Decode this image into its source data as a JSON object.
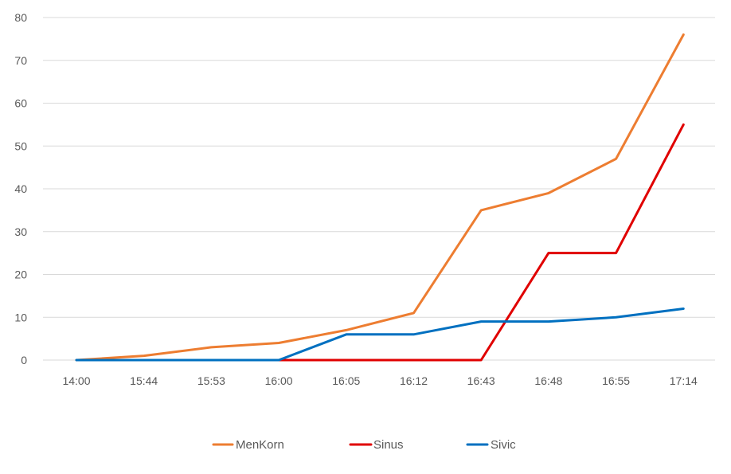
{
  "chart_data": {
    "type": "line",
    "title": "",
    "xlabel": "",
    "ylabel": "",
    "categories": [
      "14:00",
      "15:44",
      "15:53",
      "16:00",
      "16:05",
      "16:12",
      "16:43",
      "16:48",
      "16:55",
      "17:14"
    ],
    "ylim": [
      0,
      80
    ],
    "yticks": [
      0,
      10,
      20,
      30,
      40,
      50,
      60,
      70,
      80
    ],
    "grid": true,
    "legend_position": "bottom",
    "series": [
      {
        "name": "MenKorn",
        "color": "#ED7D31",
        "values": [
          0,
          1,
          3,
          4,
          7,
          11,
          35,
          39,
          47,
          76
        ]
      },
      {
        "name": "Sinus",
        "color": "#E00000",
        "values": [
          null,
          null,
          null,
          0,
          0,
          0,
          0,
          25,
          25,
          55
        ]
      },
      {
        "name": "Sivic",
        "color": "#0070C0",
        "values": [
          0,
          0,
          0,
          0,
          6,
          6,
          9,
          9,
          10,
          12
        ]
      }
    ]
  }
}
